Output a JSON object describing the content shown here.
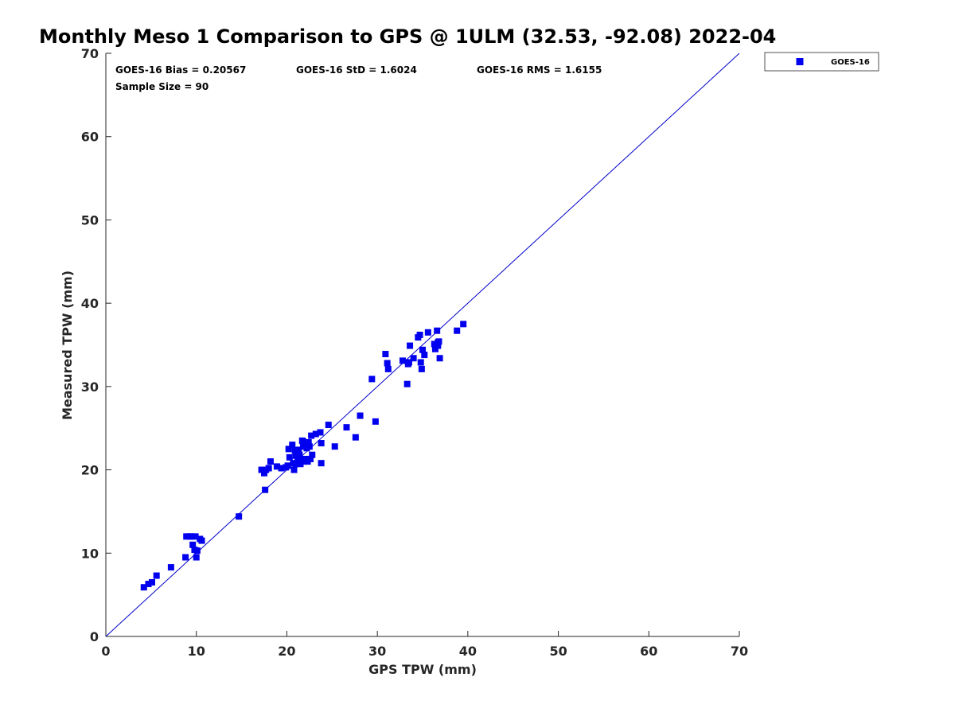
{
  "chart_data": {
    "type": "scatter",
    "title": "Monthly Meso 1 Comparison to GPS @ 1ULM (32.53, -92.08) 2022-04",
    "xlabel": "GPS TPW (mm)",
    "ylabel": "Measured TPW (mm)",
    "xlim": [
      0,
      70
    ],
    "ylim": [
      0,
      70
    ],
    "xticks": [
      "0",
      "10",
      "20",
      "30",
      "40",
      "50",
      "60",
      "70"
    ],
    "yticks": [
      "0",
      "10",
      "20",
      "30",
      "40",
      "50",
      "60",
      "70"
    ],
    "grid": false,
    "legend_position": "outside-top-right",
    "annotations": {
      "bias": "GOES-16 Bias = 0.20567",
      "std": "GOES-16 StD = 1.6024",
      "rms": "GOES-16 RMS = 1.6155",
      "sample": "Sample Size = 90"
    },
    "reference_line": {
      "x": [
        0,
        70
      ],
      "y": [
        0,
        70
      ],
      "color": "#0000cc"
    },
    "series": [
      {
        "name": "GOES-16",
        "color": "#0000ee",
        "marker": "square",
        "x": [
          4.2,
          4.7,
          5.1,
          5.6,
          7.2,
          8.8,
          8.9,
          9.3,
          9.4,
          9.6,
          9.8,
          9.9,
          10.0,
          10.1,
          10.4,
          10.6,
          14.7,
          17.2,
          17.5,
          17.6,
          17.7,
          18.0,
          18.2,
          18.9,
          19.4,
          19.9,
          20.1,
          20.2,
          20.3,
          20.6,
          20.7,
          20.8,
          20.9,
          21.0,
          21.0,
          21.1,
          21.2,
          21.3,
          21.4,
          21.5,
          21.6,
          21.8,
          21.8,
          21.9,
          22.0,
          22.1,
          22.2,
          22.3,
          22.4,
          22.5,
          22.6,
          22.7,
          22.8,
          23.2,
          23.7,
          23.8,
          23.8,
          24.6,
          25.3,
          26.6,
          27.6,
          28.1,
          29.4,
          29.8,
          30.9,
          31.1,
          31.2,
          32.8,
          33.3,
          33.4,
          33.5,
          33.6,
          34.0,
          34.5,
          34.7,
          34.8,
          34.9,
          35.0,
          35.2,
          35.6,
          36.3,
          36.4,
          36.6,
          36.7,
          36.7,
          36.8,
          36.9,
          38.8,
          39.5,
          21.7
        ],
        "y": [
          5.9,
          6.3,
          6.5,
          7.3,
          8.3,
          9.5,
          12.0,
          12.0,
          12.0,
          11.0,
          10.4,
          12.0,
          9.5,
          10.3,
          11.7,
          11.5,
          14.4,
          20.0,
          19.6,
          17.6,
          20.0,
          20.2,
          21.0,
          20.4,
          20.2,
          20.3,
          20.5,
          22.5,
          21.5,
          23.0,
          20.8,
          20.0,
          22.3,
          21.7,
          20.7,
          22.1,
          21.0,
          22.4,
          21.8,
          20.7,
          21.2,
          23.4,
          22.8,
          21.0,
          23.0,
          21.3,
          22.6,
          21.0,
          23.3,
          22.8,
          21.3,
          24.1,
          21.8,
          24.3,
          24.5,
          23.2,
          20.8,
          25.4,
          22.8,
          25.1,
          23.9,
          26.5,
          30.9,
          25.8,
          33.9,
          32.8,
          32.1,
          33.1,
          30.3,
          32.7,
          32.9,
          34.9,
          33.4,
          35.9,
          36.2,
          32.9,
          32.1,
          34.4,
          33.8,
          36.5,
          35.1,
          34.5,
          36.7,
          35.3,
          34.9,
          35.4,
          33.4,
          36.7,
          37.5,
          23.5
        ]
      }
    ]
  }
}
